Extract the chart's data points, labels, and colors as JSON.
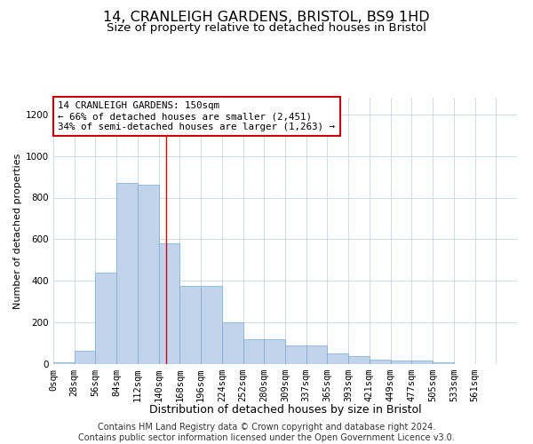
{
  "title": "14, CRANLEIGH GARDENS, BRISTOL, BS9 1HD",
  "subtitle": "Size of property relative to detached houses in Bristol",
  "xlabel": "Distribution of detached houses by size in Bristol",
  "ylabel": "Number of detached properties",
  "footer_line1": "Contains HM Land Registry data © Crown copyright and database right 2024.",
  "footer_line2": "Contains public sector information licensed under the Open Government Licence v3.0.",
  "annotation_line1": "14 CRANLEIGH GARDENS: 150sqm",
  "annotation_line2": "← 66% of detached houses are smaller (2,451)",
  "annotation_line3": "34% of semi-detached houses are larger (1,263) →",
  "bar_values": [
    10,
    65,
    440,
    870,
    860,
    580,
    375,
    375,
    200,
    120,
    120,
    90,
    90,
    50,
    40,
    20,
    15,
    15,
    8,
    2,
    2,
    1
  ],
  "bin_labels": [
    "0sqm",
    "28sqm",
    "56sqm",
    "84sqm",
    "112sqm",
    "140sqm",
    "168sqm",
    "196sqm",
    "224sqm",
    "252sqm",
    "280sqm",
    "309sqm",
    "337sqm",
    "365sqm",
    "393sqm",
    "421sqm",
    "449sqm",
    "477sqm",
    "505sqm",
    "533sqm",
    "561sqm",
    ""
  ],
  "bar_color": "#c2d4ec",
  "bar_edge_color": "#7aaad0",
  "red_line_x": 150,
  "bin_width": 28,
  "ylim": [
    0,
    1280
  ],
  "yticks": [
    0,
    200,
    400,
    600,
    800,
    1000,
    1200
  ],
  "background_color": "#ffffff",
  "grid_color": "#c8d4e4",
  "annotation_box_color": "#ffffff",
  "annotation_box_edge": "#cc0000",
  "red_line_color": "#cc0000",
  "title_fontsize": 11.5,
  "subtitle_fontsize": 9.5,
  "xlabel_fontsize": 9,
  "ylabel_fontsize": 8,
  "tick_fontsize": 7.5,
  "annotation_fontsize": 7.8,
  "footer_fontsize": 7
}
